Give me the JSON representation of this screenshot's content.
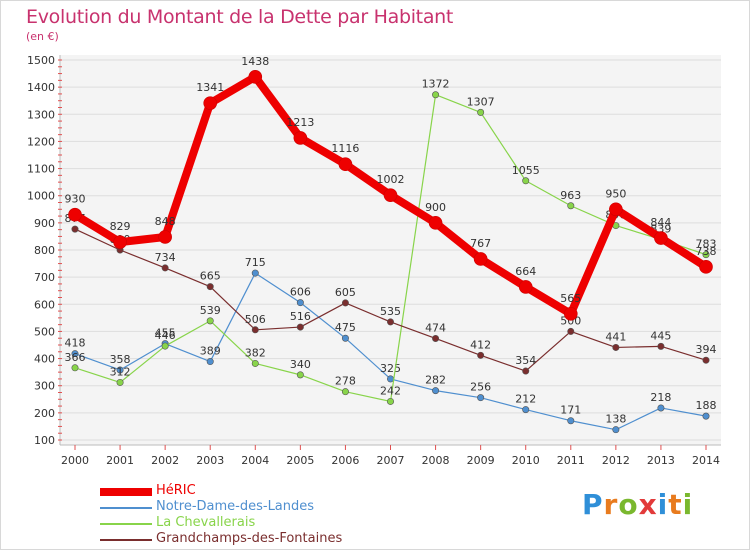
{
  "title": "Evolution du Montant de la Dette par Habitant",
  "unit": "(en €)",
  "brand": {
    "letters": [
      "P",
      "r",
      "o",
      "x",
      "i",
      "t",
      "i"
    ],
    "colors": [
      "#2f8fd8",
      "#e87b1e",
      "#7ab82e",
      "#e23a3a",
      "#2f8fd8",
      "#e87b1e",
      "#7ab82e"
    ]
  },
  "chart_data": {
    "type": "line",
    "title": "Evolution du Montant de la Dette par Habitant",
    "ylabel": "(en €)",
    "x": [
      "2000",
      "2001",
      "2002",
      "2003",
      "2004",
      "2005",
      "2006",
      "2007",
      "2008",
      "2009",
      "2010",
      "2011",
      "2012",
      "2013",
      "2014"
    ],
    "ylim": [
      100,
      1500
    ],
    "yticks": [
      100,
      200,
      300,
      400,
      500,
      600,
      700,
      800,
      900,
      1000,
      1100,
      1200,
      1300,
      1400,
      1500
    ],
    "grid": true,
    "legend_position": "bottom",
    "series": [
      {
        "name": "HéRIC",
        "color": "#ee0000",
        "emphasis": true,
        "values": [
          930,
          829,
          848,
          1341,
          1438,
          1213,
          1116,
          1002,
          900,
          767,
          664,
          565,
          950,
          844,
          738
        ]
      },
      {
        "name": "Notre-Dame-des-Landes",
        "color": "#4f8fcf",
        "emphasis": false,
        "values": [
          418,
          358,
          455,
          389,
          715,
          606,
          475,
          325,
          282,
          256,
          212,
          171,
          138,
          218,
          188
        ]
      },
      {
        "name": "La Chevallerais",
        "color": "#88d44a",
        "emphasis": false,
        "values": [
          366,
          312,
          446,
          539,
          382,
          340,
          278,
          242,
          1372,
          1307,
          1055,
          963,
          890,
          839,
          783
        ]
      },
      {
        "name": "Grandchamps-des-Fontaines",
        "color": "#7a2e2e",
        "emphasis": false,
        "values": [
          877,
          800,
          734,
          665,
          506,
          516,
          605,
          535,
          474,
          412,
          354,
          500,
          441,
          445,
          394
        ]
      }
    ]
  }
}
